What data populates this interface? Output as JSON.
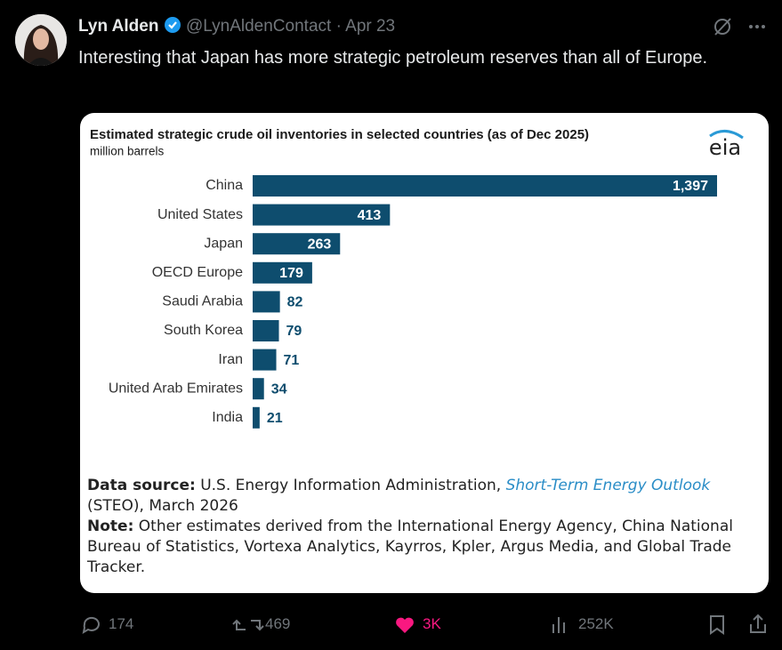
{
  "tweet": {
    "author": "Lyn Alden",
    "handle": "@LynAldenContact",
    "separator": "·",
    "date": "Apr 23",
    "text": "Interesting that Japan has more strategic petroleum reserves than all of Europe."
  },
  "chart_data": {
    "type": "bar",
    "orientation": "horizontal",
    "title": "Estimated strategic crude oil inventories in selected countries (as of Dec 2025)",
    "subtitle": "million barrels",
    "logo": "eia",
    "categories": [
      "China",
      "United States",
      "Japan",
      "OECD Europe",
      "Saudi Arabia",
      "South Korea",
      "Iran",
      "United Arab Emirates",
      "India"
    ],
    "values": [
      1397,
      413,
      263,
      179,
      82,
      79,
      71,
      34,
      21
    ],
    "value_labels": [
      "1,397",
      "413",
      "263",
      "179",
      "82",
      "79",
      "71",
      "34",
      "21"
    ],
    "color": "#0e4d6e"
  },
  "notes": {
    "source_label": "Data source:",
    "source_text": "U.S. Energy Information Administration,",
    "source_link": "Short-Term Energy Outlook",
    "source_suffix": "(STEO), March 2026",
    "note_label": "Note:",
    "note_text": "Other estimates derived from the International Energy Agency, China National Bureau of Statistics, Vortexa Analytics, Kayrros, Kpler, Argus Media, and Global Trade Tracker."
  },
  "actions": {
    "replies": "174",
    "reposts": "469",
    "likes": "3K",
    "views": "252K"
  }
}
